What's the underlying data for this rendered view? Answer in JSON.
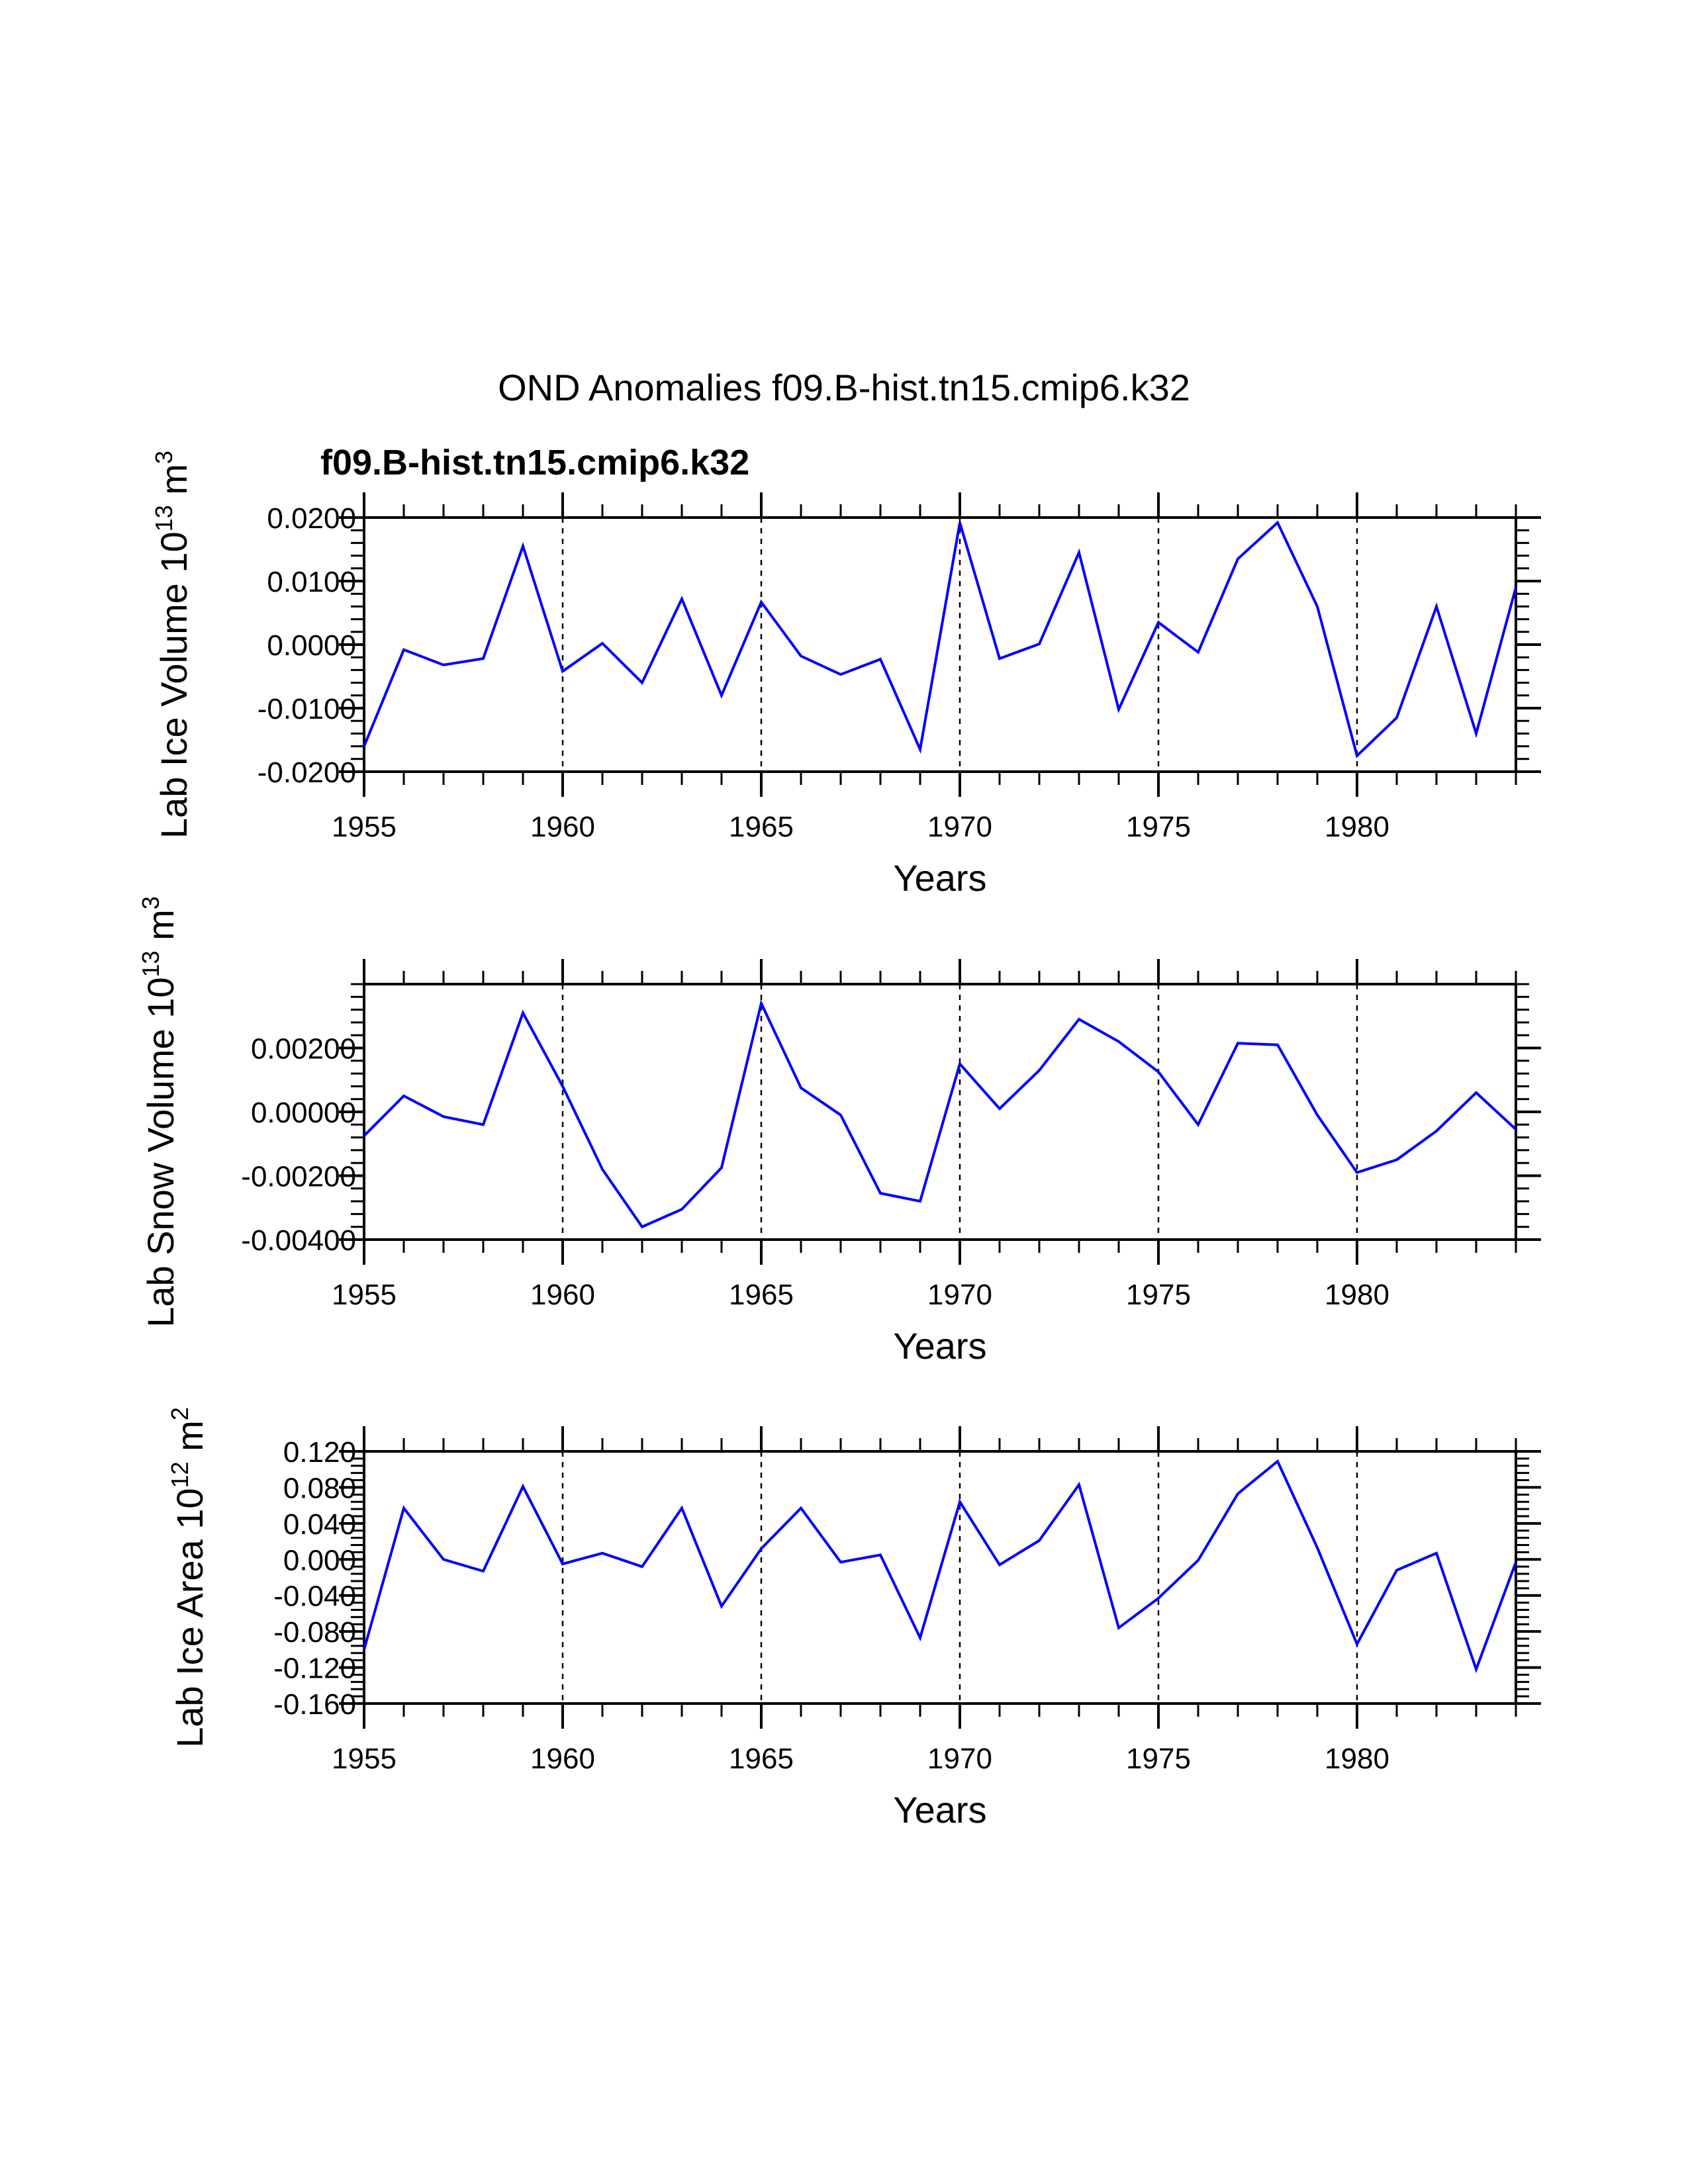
{
  "title": "OND Anomalies f09.B-hist.tn15.cmip6.k32",
  "legend_label": "f09.B-hist.tn15.cmip6.k32",
  "colors": {
    "series": "#0000ff",
    "axes": "#000000",
    "background": "#ffffff"
  },
  "chart_data": [
    {
      "type": "line",
      "title": "",
      "ylabel": {
        "text": "Lab Ice Volume 10",
        "exponent": "13",
        "unit": "m",
        "unit_exponent": "3"
      },
      "xlabel": "Years",
      "xlim": [
        1955,
        1984
      ],
      "ylim": [
        -0.02,
        0.02
      ],
      "grid": "vertical-dashed",
      "x_ticks": [
        "1955",
        "1960",
        "1965",
        "1970",
        "1975",
        "1980"
      ],
      "y_ticks": [
        "-0.0200",
        "-0.0100",
        "0.0000",
        "0.0100",
        "0.0200"
      ],
      "y_tick_values": [
        -0.02,
        -0.01,
        0.0,
        0.01,
        0.02
      ],
      "series": [
        {
          "name": "f09.B-hist.tn15.cmip6.k32",
          "x": [
            1955,
            1956,
            1957,
            1958,
            1959,
            1960,
            1961,
            1962,
            1963,
            1964,
            1965,
            1966,
            1967,
            1968,
            1969,
            1970,
            1971,
            1972,
            1973,
            1974,
            1975,
            1976,
            1977,
            1978,
            1979,
            1980,
            1981,
            1982,
            1983,
            1984
          ],
          "values": [
            -0.016,
            -0.0008,
            -0.0032,
            -0.0022,
            0.0155,
            -0.0042,
            0.0002,
            -0.006,
            0.0072,
            -0.008,
            0.0067,
            -0.0018,
            -0.0047,
            -0.0023,
            -0.0165,
            0.0192,
            -0.0022,
            0.0001,
            0.0145,
            -0.0102,
            0.0035,
            -0.0012,
            0.0135,
            0.0192,
            0.006,
            -0.0175,
            -0.0115,
            0.006,
            -0.014,
            0.009
          ]
        }
      ]
    },
    {
      "type": "line",
      "title": "",
      "ylabel": {
        "text": "Lab Snow Volume 10",
        "exponent": "13",
        "unit": "m",
        "unit_exponent": "3"
      },
      "xlabel": "Years",
      "xlim": [
        1955,
        1984
      ],
      "ylim": [
        -0.004,
        0.004
      ],
      "grid": "vertical-dashed",
      "x_ticks": [
        "1955",
        "1960",
        "1965",
        "1970",
        "1975",
        "1980"
      ],
      "y_ticks": [
        "-0.00400",
        "-0.00200",
        "0.00000",
        "0.00200"
      ],
      "y_tick_values": [
        -0.004,
        -0.002,
        0.0,
        0.002
      ],
      "series": [
        {
          "name": "f09.B-hist.tn15.cmip6.k32",
          "x": [
            1955,
            1956,
            1957,
            1958,
            1959,
            1960,
            1961,
            1962,
            1963,
            1964,
            1965,
            1966,
            1967,
            1968,
            1969,
            1970,
            1971,
            1972,
            1973,
            1974,
            1975,
            1976,
            1977,
            1978,
            1979,
            1980,
            1981,
            1982,
            1983,
            1984
          ],
          "values": [
            -0.00075,
            0.0005,
            -0.00015,
            -0.0004,
            0.0031,
            0.0008,
            -0.0018,
            -0.0036,
            -0.00305,
            -0.00175,
            0.0034,
            0.00075,
            -0.0001,
            -0.00255,
            -0.0028,
            0.0015,
            0.0001,
            0.0013,
            0.0029,
            0.0022,
            0.00125,
            -0.0004,
            0.00215,
            0.0021,
            -0.0001,
            -0.0019,
            -0.0015,
            -0.0006,
            0.0006,
            -0.00055
          ]
        }
      ]
    },
    {
      "type": "line",
      "title": "",
      "ylabel": {
        "text": "Lab Ice Area 10",
        "exponent": "12",
        "unit": "m",
        "unit_exponent": "2"
      },
      "xlabel": "Years",
      "xlim": [
        1955,
        1984
      ],
      "ylim": [
        -0.16,
        0.12
      ],
      "grid": "vertical-dashed",
      "x_ticks": [
        "1955",
        "1960",
        "1965",
        "1970",
        "1975",
        "1980"
      ],
      "y_ticks": [
        "-0.160",
        "-0.120",
        "-0.080",
        "-0.040",
        "0.000",
        "0.040",
        "0.080",
        "0.120"
      ],
      "y_tick_values": [
        -0.16,
        -0.12,
        -0.08,
        -0.04,
        0.0,
        0.04,
        0.08,
        0.12
      ],
      "series": [
        {
          "name": "f09.B-hist.tn15.cmip6.k32",
          "x": [
            1955,
            1956,
            1957,
            1958,
            1959,
            1960,
            1961,
            1962,
            1963,
            1964,
            1965,
            1966,
            1967,
            1968,
            1969,
            1970,
            1971,
            1972,
            1973,
            1974,
            1975,
            1976,
            1977,
            1978,
            1979,
            1980,
            1981,
            1982,
            1983,
            1984
          ],
          "values": [
            -0.1,
            0.057,
            0.0,
            -0.013,
            0.081,
            -0.005,
            0.007,
            -0.008,
            0.057,
            -0.052,
            0.012,
            0.057,
            -0.003,
            0.005,
            -0.087,
            0.064,
            -0.006,
            0.021,
            0.083,
            -0.076,
            -0.043,
            -0.001,
            0.073,
            0.109,
            0.013,
            -0.094,
            -0.012,
            0.007,
            -0.122,
            -0.003
          ]
        }
      ]
    }
  ]
}
